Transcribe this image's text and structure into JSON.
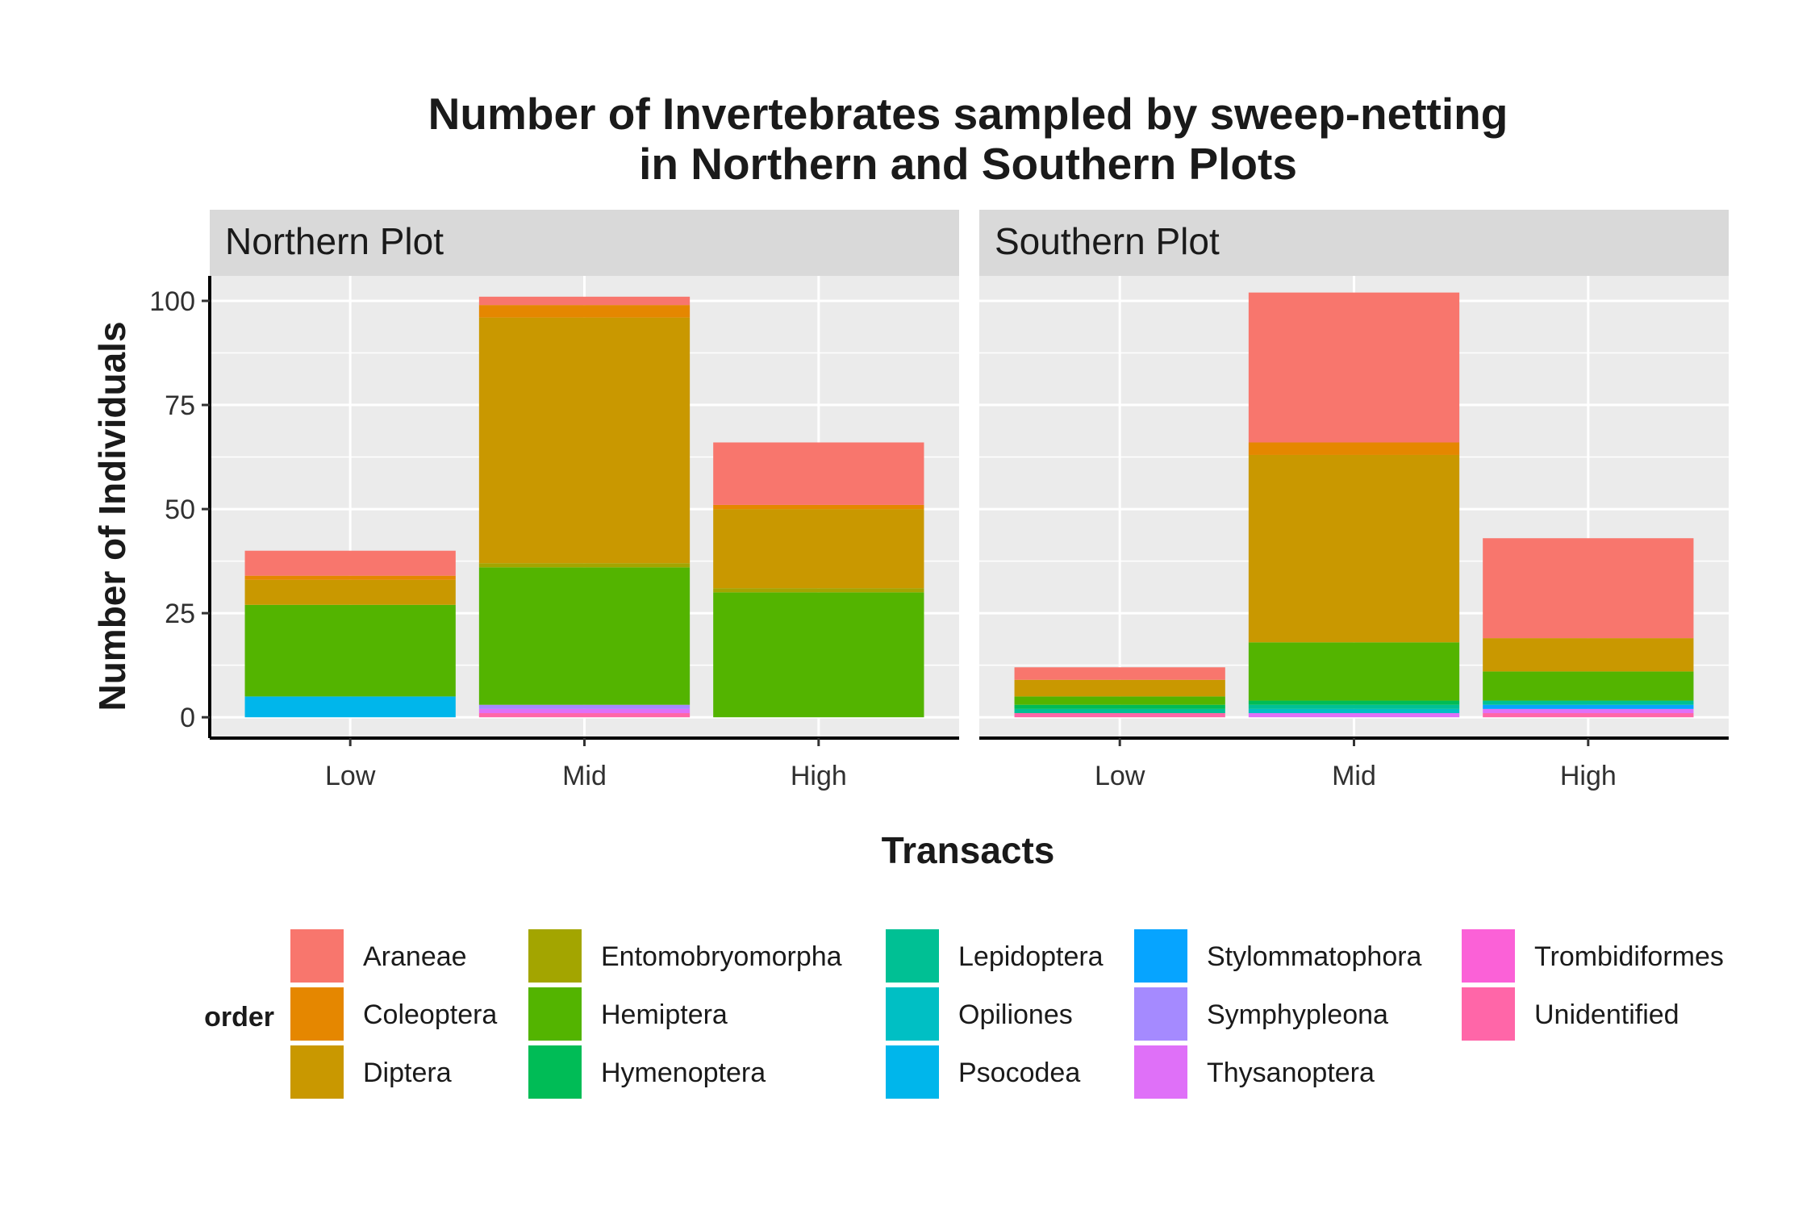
{
  "chart_data": {
    "type": "bar",
    "stacked": true,
    "title_line1": "Number of Invertebrates sampled by sweep-netting",
    "title_line2": "in Northern and Southern Plots",
    "xlabel": "Transacts",
    "ylabel": "Number of Individuals",
    "ylim": [
      -5,
      106
    ],
    "yticks": [
      0,
      25,
      50,
      75,
      100
    ],
    "categories": [
      "Low",
      "Mid",
      "High"
    ],
    "legend_title": "order",
    "legend_position": "bottom",
    "grid": true,
    "orders": [
      {
        "name": "Araneae",
        "color": "#F8766D"
      },
      {
        "name": "Coleoptera",
        "color": "#E58700"
      },
      {
        "name": "Diptera",
        "color": "#C99800"
      },
      {
        "name": "Entomobryomorpha",
        "color": "#A3A500"
      },
      {
        "name": "Hemiptera",
        "color": "#53B400"
      },
      {
        "name": "Hymenoptera",
        "color": "#00BC56"
      },
      {
        "name": "Lepidoptera",
        "color": "#00C094"
      },
      {
        "name": "Opiliones",
        "color": "#00BFC4"
      },
      {
        "name": "Psocodea",
        "color": "#00B6EB"
      },
      {
        "name": "Stylommatophora",
        "color": "#06A4FF"
      },
      {
        "name": "Symphypleona",
        "color": "#A58AFF"
      },
      {
        "name": "Thysanoptera",
        "color": "#DF70F8"
      },
      {
        "name": "Trombidiformes",
        "color": "#FB61D7"
      },
      {
        "name": "Unidentified",
        "color": "#FF66A8"
      }
    ],
    "panels": [
      {
        "name": "Northern Plot",
        "bars": {
          "Low": {
            "Psocodea": 5,
            "Hemiptera": 22,
            "Diptera": 6,
            "Coleoptera": 1,
            "Araneae": 6
          },
          "Mid": {
            "Unidentified": 1,
            "Thysanoptera": 1,
            "Symphypleona": 1,
            "Hemiptera": 33,
            "Entomobryomorpha": 1,
            "Diptera": 59,
            "Coleoptera": 3,
            "Araneae": 2
          },
          "High": {
            "Hemiptera": 30,
            "Entomobryomorpha": 1,
            "Diptera": 19,
            "Coleoptera": 1,
            "Araneae": 15
          }
        }
      },
      {
        "name": "Southern Plot",
        "bars": {
          "Low": {
            "Unidentified": 1,
            "Lepidoptera": 1,
            "Hymenoptera": 1,
            "Hemiptera": 2,
            "Diptera": 4,
            "Araneae": 3
          },
          "Mid": {
            "Thysanoptera": 1,
            "Opiliones": 1,
            "Lepidoptera": 1,
            "Hymenoptera": 1,
            "Hemiptera": 14,
            "Diptera": 45,
            "Coleoptera": 3,
            "Araneae": 36
          },
          "High": {
            "Unidentified": 1,
            "Thysanoptera": 1,
            "Stylommatophora": 1,
            "Lepidoptera": 1,
            "Hemiptera": 7,
            "Diptera": 8,
            "Araneae": 24
          }
        }
      }
    ]
  }
}
